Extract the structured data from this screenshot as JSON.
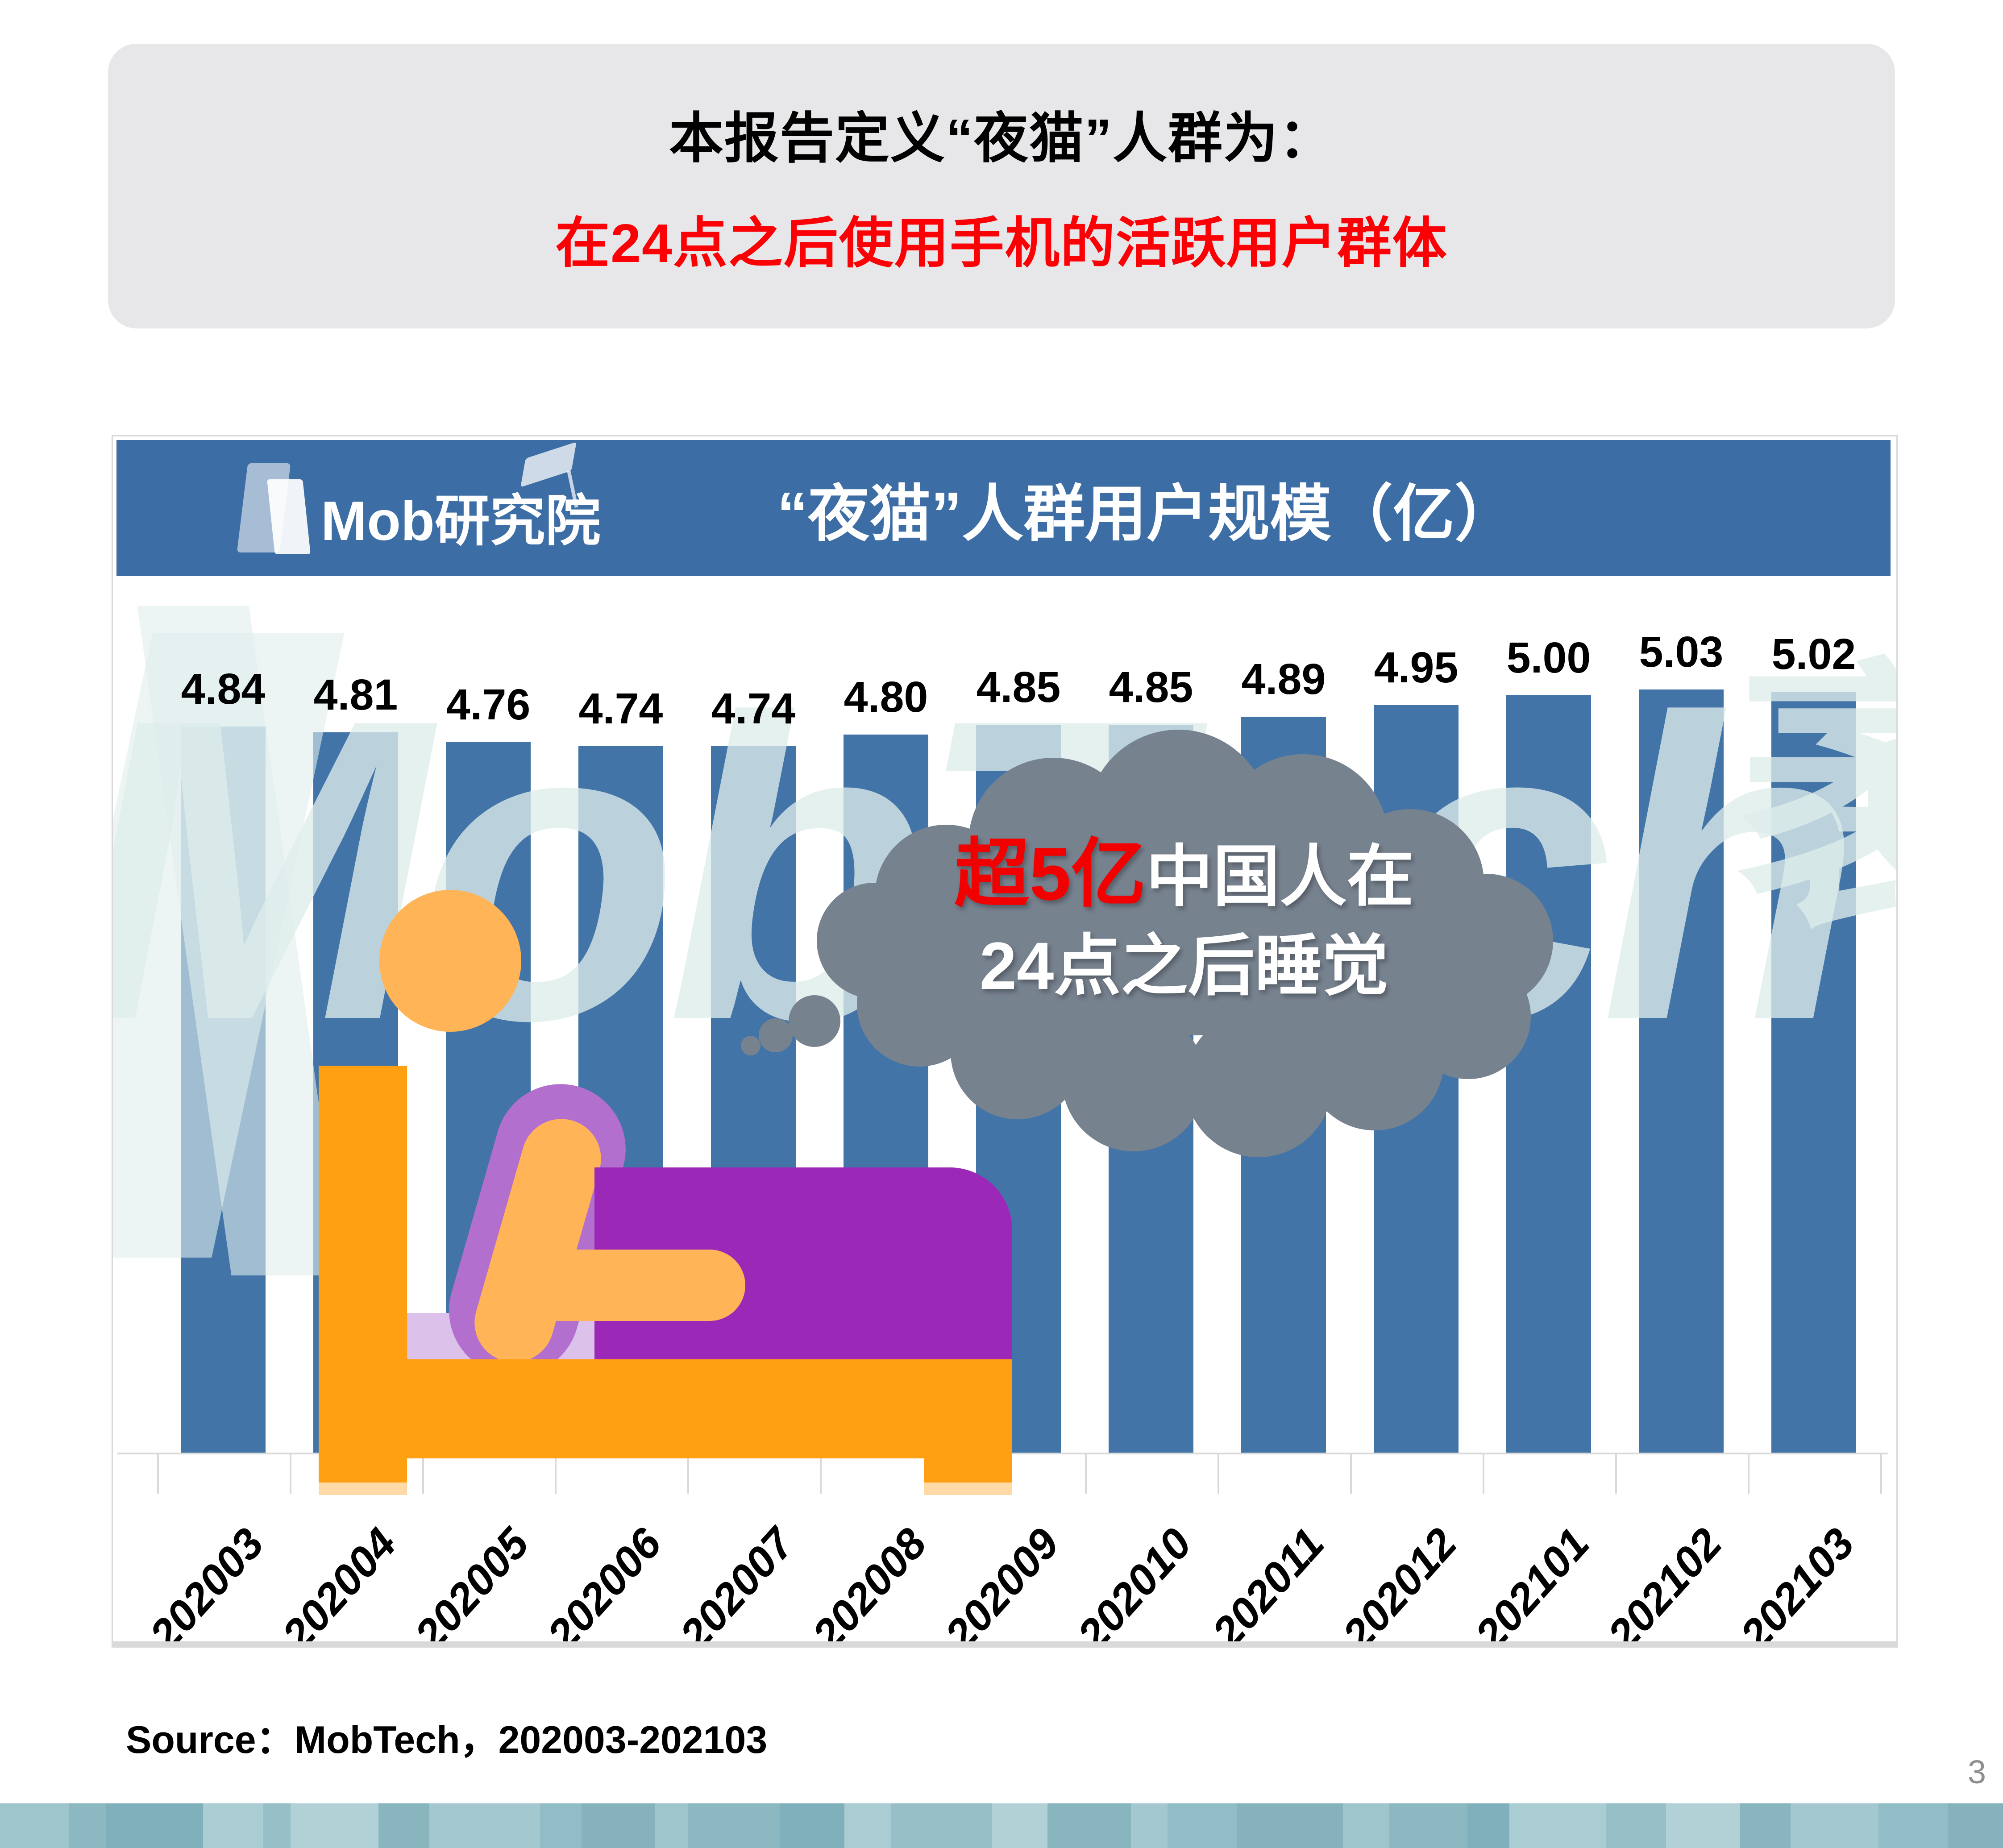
{
  "page": {
    "page_number": "3"
  },
  "header_box": {
    "line1": "本报告定义“夜猫”人群为：",
    "line2": "在24点之后使用手机的活跃用户群体",
    "line2_color": "#FB0005",
    "bg_color": "#E7E6E9"
  },
  "chart": {
    "brand_logo_text": "Mob研究院",
    "title": "“夜猫”人群用户规模（亿）",
    "header_bg_color": "#3D6DA5",
    "bar_color": "#4274A8",
    "watermark_latin": "MobTech",
    "watermark_cjk": "袤博"
  },
  "chart_data": {
    "type": "bar",
    "title": "“夜猫”人群用户规模（亿）",
    "categories": [
      "202003",
      "202004",
      "202005",
      "202006",
      "202007",
      "202008",
      "202009",
      "202010",
      "202011",
      "202012",
      "202101",
      "202102",
      "202103"
    ],
    "values": [
      4.84,
      4.81,
      4.76,
      4.74,
      4.74,
      4.8,
      4.85,
      4.85,
      4.89,
      4.95,
      5.0,
      5.03,
      5.02
    ],
    "xlabel": "",
    "ylabel": "",
    "value_axis_hidden": true,
    "value_labels_shown": true,
    "grid": false,
    "legend": false,
    "ylim_visual": [
      1.1,
      5.35
    ],
    "annotation": "超5亿中国人在24点之后睡觉"
  },
  "callout": {
    "highlight": "超5亿",
    "line1_rest": "中国人在",
    "line2": "24点之后睡觉",
    "bubble_color": "#77828F",
    "highlight_color": "#F20000"
  },
  "source": "Source：MobTech，202003-202103",
  "footer_strip": {
    "colors": [
      "#9EC4CC",
      "#8CB8C2",
      "#7FB0BB",
      "#AACDD3",
      "#96BFC8",
      "#B2D1D7",
      "#89B5BF",
      "#A3C8CF",
      "#93BDC6",
      "#85B2BD"
    ],
    "widths": [
      150,
      80,
      210,
      130,
      60,
      190,
      110,
      240,
      90,
      160,
      70,
      200,
      140,
      100,
      220,
      120,
      180,
      80,
      150,
      230,
      100,
      170,
      90,
      210,
      130,
      160,
      110,
      190,
      150,
      120
    ]
  }
}
